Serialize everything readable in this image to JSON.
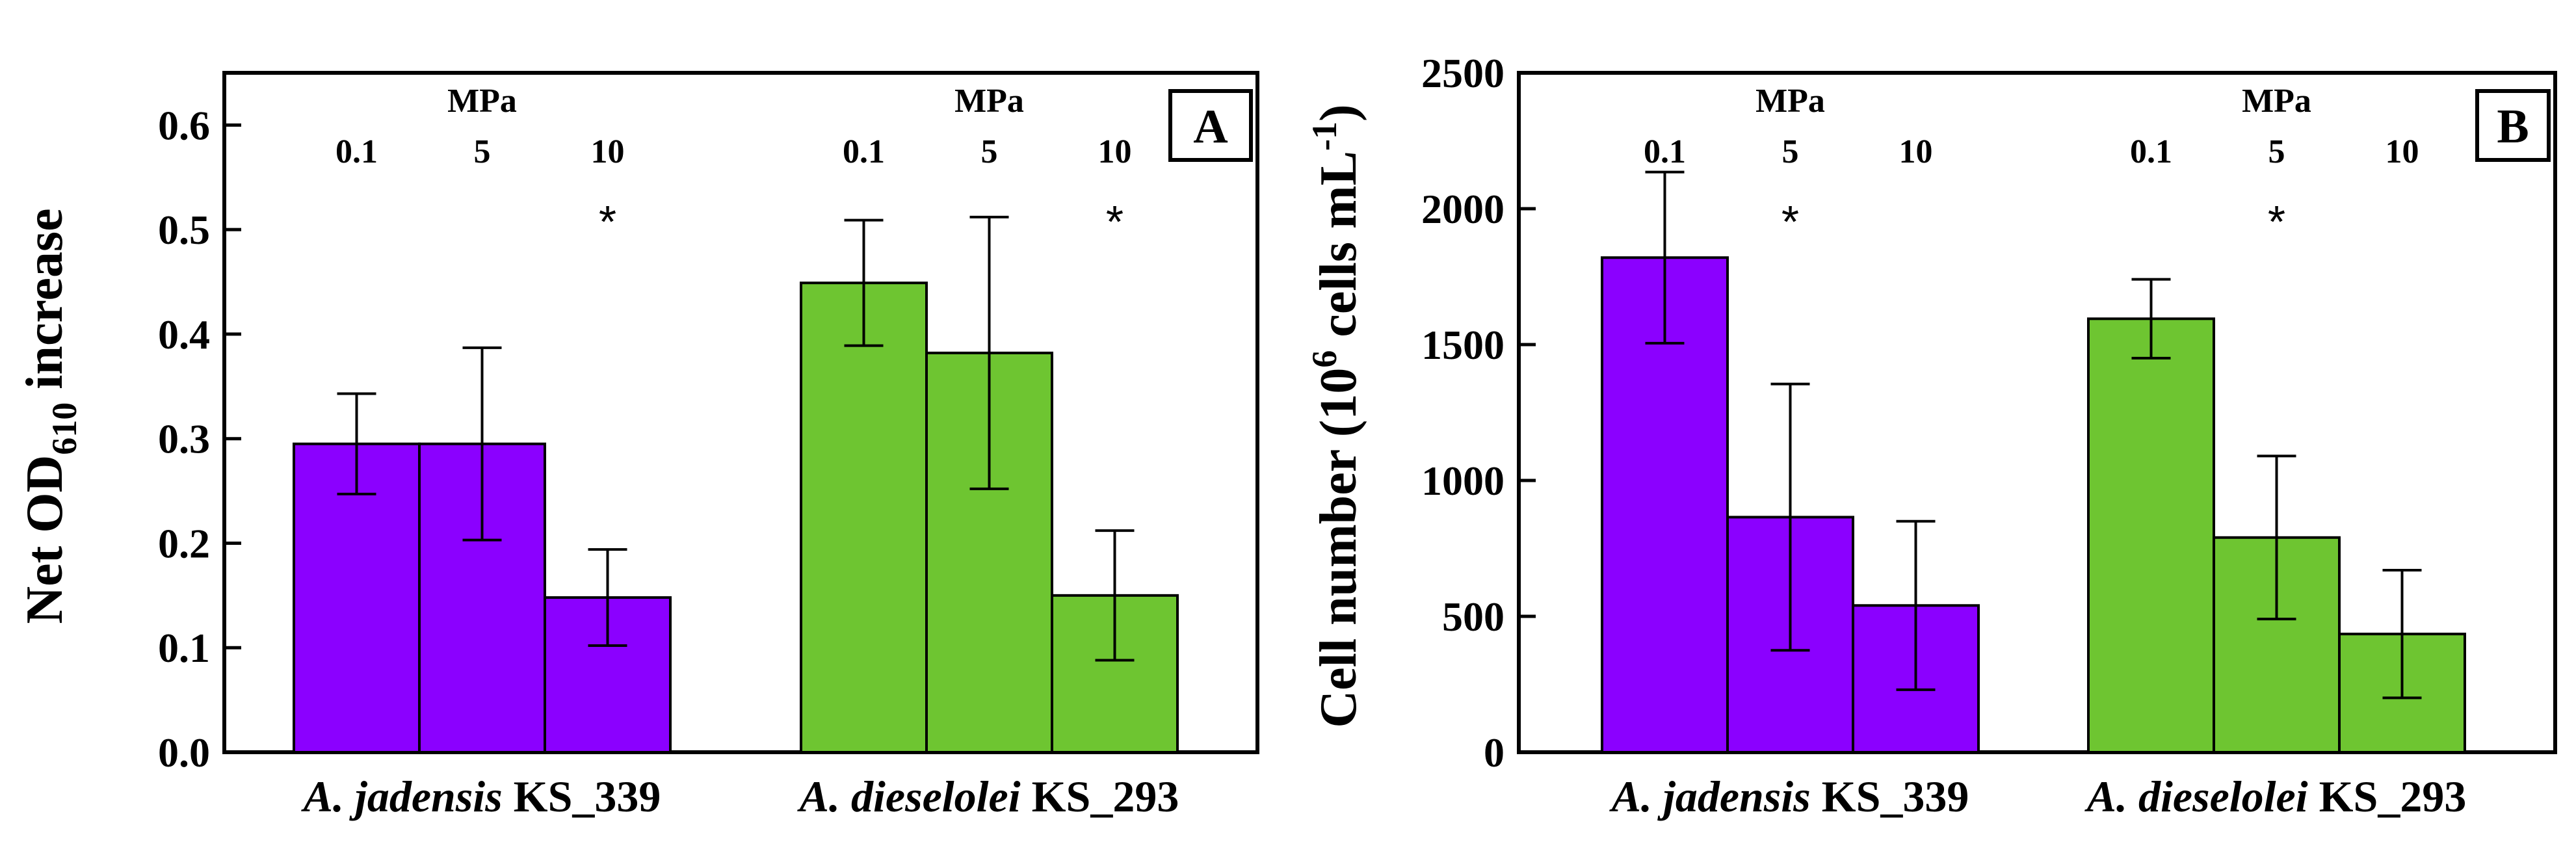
{
  "chart_data": [
    {
      "type": "bar",
      "panel_label": "A",
      "ylabel_parts": [
        "Net OD",
        "610",
        " increase"
      ],
      "ylim": [
        0.0,
        0.65
      ],
      "yticks": [
        "0.0",
        "0.1",
        "0.2",
        "0.3",
        "0.4",
        "0.5",
        "0.6"
      ],
      "ytick_values": [
        0.0,
        0.1,
        0.2,
        0.3,
        0.4,
        0.5,
        0.6
      ],
      "unit_label": "MPa",
      "groups": [
        {
          "species": "A. jadensis",
          "strain": " KS_339",
          "color": "#8b00ff",
          "pressures": [
            "0.1",
            "5",
            "10"
          ],
          "values": [
            0.295,
            0.295,
            0.148
          ],
          "errors": [
            0.048,
            0.092,
            0.046
          ],
          "significant": [
            "",
            "",
            "*"
          ]
        },
        {
          "species": "A. dieselolei",
          "strain": " KS_293",
          "color": "#6ec531",
          "pressures": [
            "0.1",
            "5",
            "10"
          ],
          "values": [
            0.449,
            0.382,
            0.15
          ],
          "errors": [
            0.06,
            0.13,
            0.062
          ],
          "significant": [
            "",
            "",
            "*"
          ]
        }
      ]
    },
    {
      "type": "bar",
      "panel_label": "B",
      "ylabel_parts": [
        "Cell number (10",
        "6",
        " cells mL",
        "-1",
        ")"
      ],
      "ylim": [
        0,
        2500
      ],
      "yticks": [
        "0",
        "500",
        "1000",
        "1500",
        "2000",
        "2500"
      ],
      "ytick_values": [
        0,
        500,
        1000,
        1500,
        2000,
        2500
      ],
      "unit_label": "MPa",
      "groups": [
        {
          "species": "A. jadensis",
          "strain": " KS_339",
          "color": "#8b00ff",
          "pressures": [
            "0.1",
            "5",
            "10"
          ],
          "values": [
            1820,
            865,
            540
          ],
          "errors": [
            315,
            490,
            310
          ],
          "significant": [
            "",
            "*",
            ""
          ]
        },
        {
          "species": "A. dieselolei",
          "strain": " KS_293",
          "color": "#6ec531",
          "pressures": [
            "0.1",
            "5",
            "10"
          ],
          "values": [
            1595,
            790,
            435
          ],
          "errors": [
            145,
            300,
            235
          ],
          "significant": [
            "",
            "*",
            ""
          ]
        }
      ]
    }
  ]
}
